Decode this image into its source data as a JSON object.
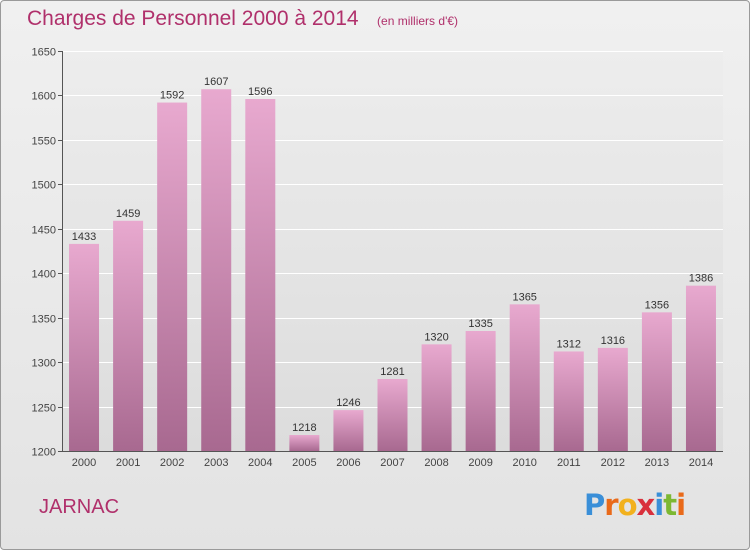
{
  "header": {
    "title": "Charges de Personnel 2000 à 2014",
    "subtitle": "(en milliers d'€)"
  },
  "footer": {
    "commune": "JARNAC",
    "logo_text": "Proxiti"
  },
  "colors": {
    "accent": "#b0306b",
    "bar_top": "#e8a9cf",
    "bar_bottom": "#a86990",
    "background": "#e8e8e8",
    "logo_letters": [
      "#3a8fd8",
      "#e96a1a",
      "#f2b11d",
      "#d9303c",
      "#3a8fd8",
      "#7cb832",
      "#e96a1a"
    ]
  },
  "chart_data": {
    "type": "bar",
    "categories": [
      "2000",
      "2001",
      "2002",
      "2003",
      "2004",
      "2005",
      "2006",
      "2007",
      "2008",
      "2009",
      "2010",
      "2011",
      "2012",
      "2013",
      "2014"
    ],
    "values": [
      1433,
      1459,
      1592,
      1607,
      1596,
      1218,
      1246,
      1281,
      1320,
      1335,
      1365,
      1312,
      1316,
      1356,
      1386
    ],
    "ylim": [
      1200,
      1650
    ],
    "yticks": [
      1200,
      1250,
      1300,
      1350,
      1400,
      1450,
      1500,
      1550,
      1600,
      1650
    ],
    "grid": true,
    "xlabel": "",
    "ylabel": ""
  }
}
